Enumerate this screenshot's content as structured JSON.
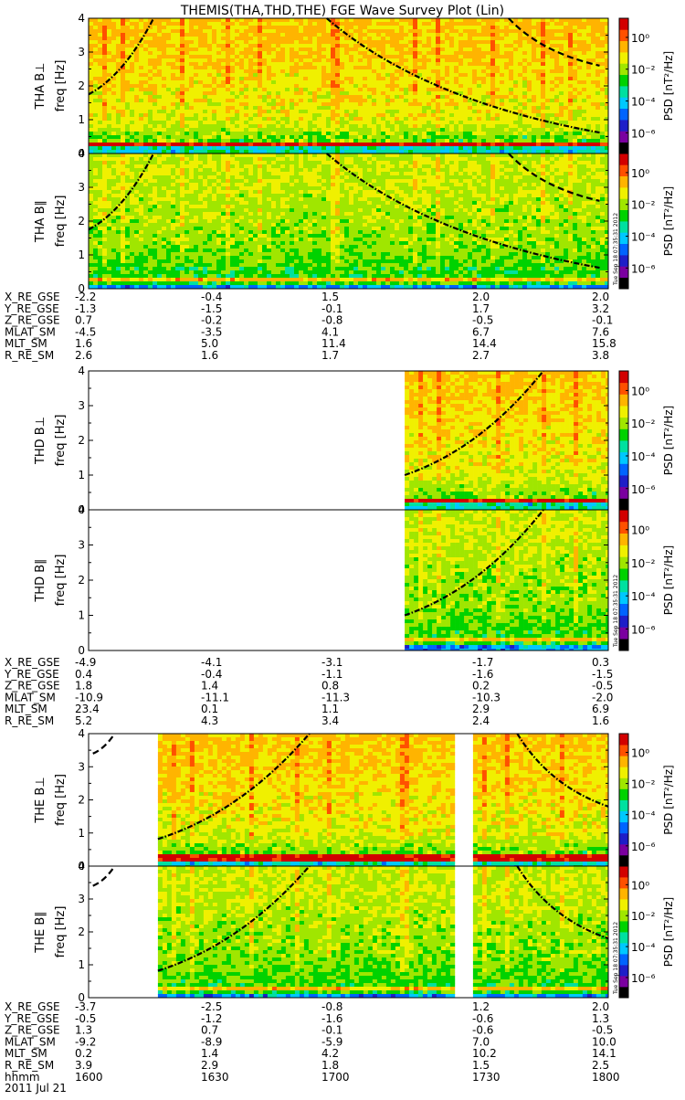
{
  "title": "THEMIS(THA,THD,THE) FGE Wave Survey Plot (Lin)",
  "date_label": "2011 Jul 21",
  "stamp": "Tue Sep 18 07:35:31 2012",
  "time_row": {
    "label": "hhmm",
    "values": [
      "1600",
      "1630",
      "1700",
      "1730",
      "1800"
    ]
  },
  "colorbar": {
    "label": "PSD [nT²/Hz]",
    "ticks": [
      {
        "text": "10⁰",
        "exp": 0
      },
      {
        "text": "10⁻²",
        "exp": -2
      },
      {
        "text": "10⁻⁴",
        "exp": -4
      },
      {
        "text": "10⁻⁶",
        "exp": -6
      }
    ],
    "colors": [
      "#000000",
      "#7a00a0",
      "#1e1ec8",
      "#0064ff",
      "#00c8ff",
      "#00e0a0",
      "#00d200",
      "#a0e600",
      "#f0f000",
      "#ffb400",
      "#ff5000",
      "#d20000"
    ]
  },
  "ylabel_unit": "freq [Hz]",
  "chart_data": [
    {
      "type": "heatmap",
      "probe": "THA",
      "panel_label": "THA B⊥",
      "ylim": [
        0,
        4
      ],
      "yticks": [
        0,
        1,
        2,
        3,
        4
      ],
      "data_time_range": [
        "1600",
        "1800"
      ],
      "baseline": "perp",
      "curves": [
        {
          "x": [
            "1600",
            "1615"
          ],
          "y": [
            1.75,
            4.0
          ],
          "style": "dash-dot"
        },
        {
          "x": [
            "1655",
            "1758"
          ],
          "y": [
            4.0,
            0.62
          ],
          "style": "dash-dot"
        },
        {
          "x": [
            "1737",
            "1758"
          ],
          "y": [
            4.0,
            2.6
          ],
          "style": "dash"
        }
      ]
    },
    {
      "type": "heatmap",
      "probe": "THA",
      "panel_label": "THA B∥",
      "ylim": [
        0,
        4
      ],
      "yticks": [
        0,
        1,
        2,
        3,
        4
      ],
      "data_time_range": [
        "1600",
        "1800"
      ],
      "baseline": "par",
      "curves": [
        {
          "x": [
            "1600",
            "1615"
          ],
          "y": [
            1.75,
            4.0
          ],
          "style": "dash-dot"
        },
        {
          "x": [
            "1655",
            "1758"
          ],
          "y": [
            4.0,
            0.62
          ],
          "style": "dash-dot"
        },
        {
          "x": [
            "1737",
            "1758"
          ],
          "y": [
            4.0,
            2.6
          ],
          "style": "dash"
        }
      ]
    },
    {
      "type": "heatmap",
      "probe": "THD",
      "panel_label": "THD B⊥",
      "ylim": [
        0,
        4
      ],
      "yticks": [
        0,
        1,
        2,
        3,
        4
      ],
      "data_time_range": [
        "1713",
        "1800"
      ],
      "baseline": "perp",
      "curves": [
        {
          "x": [
            "1713",
            "1745"
          ],
          "y": [
            1.0,
            4.0
          ],
          "style": "dash-dot"
        }
      ]
    },
    {
      "type": "heatmap",
      "probe": "THD",
      "panel_label": "THD B∥",
      "ylim": [
        0,
        4
      ],
      "yticks": [
        0,
        1,
        2,
        3,
        4
      ],
      "data_time_range": [
        "1713",
        "1800"
      ],
      "baseline": "par",
      "curves": [
        {
          "x": [
            "1713",
            "1745"
          ],
          "y": [
            1.0,
            4.0
          ],
          "style": "dash-dot"
        }
      ]
    },
    {
      "type": "heatmap",
      "probe": "THE",
      "panel_label": "THE B⊥",
      "ylim": [
        0,
        4
      ],
      "yticks": [
        0,
        1,
        2,
        3,
        4
      ],
      "data_time_range": [
        "1616",
        "1800"
      ],
      "gap": [
        "1725",
        "1728"
      ],
      "baseline": "perp",
      "curves": [
        {
          "x": [
            "1601",
            "1606"
          ],
          "y": [
            3.4,
            4.0
          ],
          "style": "dash"
        },
        {
          "x": [
            "1616",
            "1651"
          ],
          "y": [
            0.82,
            4.0
          ],
          "style": "dash-dot"
        },
        {
          "x": [
            "1739",
            "1800"
          ],
          "y": [
            4.0,
            1.8
          ],
          "style": "dash-dot"
        }
      ]
    },
    {
      "type": "heatmap",
      "probe": "THE",
      "panel_label": "THE B∥",
      "ylim": [
        0,
        4
      ],
      "yticks": [
        0,
        1,
        2,
        3,
        4
      ],
      "data_time_range": [
        "1616",
        "1800"
      ],
      "gap": [
        "1725",
        "1728"
      ],
      "baseline": "par",
      "curves": [
        {
          "x": [
            "1601",
            "1606"
          ],
          "y": [
            3.4,
            4.0
          ],
          "style": "dash"
        },
        {
          "x": [
            "1616",
            "1651"
          ],
          "y": [
            0.82,
            4.0
          ],
          "style": "dash-dot"
        },
        {
          "x": [
            "1739",
            "1800"
          ],
          "y": [
            4.0,
            1.8
          ],
          "style": "dash-dot"
        }
      ]
    }
  ],
  "ephem": [
    {
      "rows": [
        {
          "label": "X_RE_GSE",
          "values": [
            "-2.2",
            "-0.4",
            "1.5",
            "2.0",
            "2.0"
          ]
        },
        {
          "label": "Y_RE_GSE",
          "values": [
            "-1.3",
            "-1.5",
            "-0.1",
            "1.7",
            "3.2"
          ]
        },
        {
          "label": "Z_RE_GSE",
          "values": [
            "0.7",
            "-0.2",
            "-0.8",
            "-0.5",
            "-0.1"
          ]
        },
        {
          "label": "MLAT_SM",
          "values": [
            "-4.5",
            "-3.5",
            "4.1",
            "6.7",
            "7.6"
          ]
        },
        {
          "label": "MLT_SM",
          "values": [
            "1.6",
            "5.0",
            "11.4",
            "14.4",
            "15.8"
          ]
        },
        {
          "label": "R_RE_SM",
          "values": [
            "2.6",
            "1.6",
            "1.7",
            "2.7",
            "3.8"
          ]
        }
      ]
    },
    {
      "rows": [
        {
          "label": "X_RE_GSE",
          "values": [
            "-4.9",
            "-4.1",
            "-3.1",
            "-1.7",
            "0.3"
          ]
        },
        {
          "label": "Y_RE_GSE",
          "values": [
            "0.4",
            "-0.4",
            "-1.1",
            "-1.6",
            "-1.5"
          ]
        },
        {
          "label": "Z_RE_GSE",
          "values": [
            "1.8",
            "1.4",
            "0.8",
            "0.2",
            "-0.5"
          ]
        },
        {
          "label": "MLAT_SM",
          "values": [
            "-10.9",
            "-11.1",
            "-11.3",
            "-10.3",
            "-2.0"
          ]
        },
        {
          "label": "MLT_SM",
          "values": [
            "23.4",
            "0.1",
            "1.1",
            "2.9",
            "6.9"
          ]
        },
        {
          "label": "R_RE_SM",
          "values": [
            "5.2",
            "4.3",
            "3.4",
            "2.4",
            "1.6"
          ]
        }
      ]
    },
    {
      "rows": [
        {
          "label": "X_RE_GSE",
          "values": [
            "-3.7",
            "-2.5",
            "-0.8",
            "1.2",
            "2.0"
          ]
        },
        {
          "label": "Y_RE_GSE",
          "values": [
            "-0.5",
            "-1.2",
            "-1.6",
            "-0.6",
            "1.3"
          ]
        },
        {
          "label": "Z_RE_GSE",
          "values": [
            "1.3",
            "0.7",
            "-0.1",
            "-0.6",
            "-0.5"
          ]
        },
        {
          "label": "MLAT_SM",
          "values": [
            "-9.2",
            "-8.9",
            "-5.9",
            "7.0",
            "10.0"
          ]
        },
        {
          "label": "MLT_SM",
          "values": [
            "0.2",
            "1.4",
            "4.2",
            "10.2",
            "14.1"
          ]
        },
        {
          "label": "R_RE_SM",
          "values": [
            "3.9",
            "2.9",
            "1.8",
            "1.5",
            "2.5"
          ]
        }
      ]
    }
  ]
}
